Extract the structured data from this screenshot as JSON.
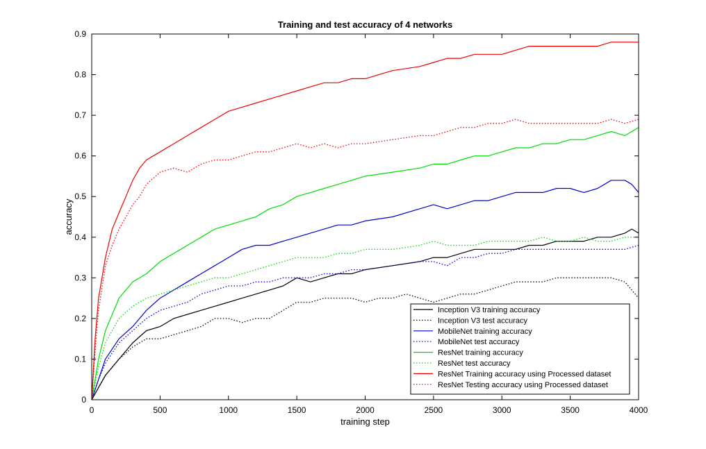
{
  "chart_data": {
    "type": "line",
    "title": "Training and test accuracy of 4 networks",
    "xlabel": "training step",
    "ylabel": "accuracy",
    "xlim": [
      0,
      4000
    ],
    "ylim": [
      0,
      0.9
    ],
    "xticks": [
      0,
      500,
      1000,
      1500,
      2000,
      2500,
      3000,
      3500,
      4000
    ],
    "yticks": [
      0,
      0.1,
      0.2,
      0.3,
      0.4,
      0.5,
      0.6,
      0.7,
      0.8,
      0.9
    ],
    "grid": false,
    "legend_position": "bottom-right",
    "series": [
      {
        "name": "Inception V3 training accuracy",
        "color": "#000000",
        "style": "solid",
        "x": [
          0,
          50,
          100,
          200,
          300,
          400,
          500,
          600,
          700,
          800,
          900,
          1000,
          1100,
          1200,
          1300,
          1400,
          1500,
          1600,
          1700,
          1800,
          1900,
          2000,
          2200,
          2400,
          2500,
          2600,
          2700,
          2800,
          2900,
          3000,
          3100,
          3200,
          3300,
          3400,
          3500,
          3600,
          3700,
          3800,
          3900,
          3950,
          4000
        ],
        "y": [
          0.0,
          0.03,
          0.06,
          0.1,
          0.14,
          0.17,
          0.18,
          0.2,
          0.21,
          0.22,
          0.23,
          0.24,
          0.25,
          0.26,
          0.27,
          0.28,
          0.3,
          0.29,
          0.3,
          0.31,
          0.31,
          0.32,
          0.33,
          0.34,
          0.35,
          0.35,
          0.36,
          0.37,
          0.37,
          0.37,
          0.37,
          0.38,
          0.38,
          0.39,
          0.39,
          0.39,
          0.4,
          0.4,
          0.41,
          0.42,
          0.41
        ]
      },
      {
        "name": "Inception V3 test accuracy",
        "color": "#000000",
        "style": "dotted",
        "x": [
          0,
          50,
          100,
          200,
          300,
          400,
          500,
          600,
          700,
          800,
          900,
          1000,
          1100,
          1200,
          1300,
          1400,
          1500,
          1600,
          1700,
          1800,
          1900,
          2000,
          2100,
          2200,
          2300,
          2400,
          2500,
          2600,
          2700,
          2800,
          2900,
          3000,
          3100,
          3200,
          3300,
          3400,
          3500,
          3600,
          3700,
          3800,
          3900,
          4000
        ],
        "y": [
          0.0,
          0.03,
          0.06,
          0.1,
          0.13,
          0.15,
          0.15,
          0.16,
          0.17,
          0.18,
          0.2,
          0.2,
          0.19,
          0.2,
          0.2,
          0.22,
          0.24,
          0.24,
          0.25,
          0.25,
          0.25,
          0.24,
          0.25,
          0.25,
          0.26,
          0.25,
          0.24,
          0.25,
          0.26,
          0.26,
          0.27,
          0.28,
          0.29,
          0.29,
          0.29,
          0.3,
          0.3,
          0.3,
          0.3,
          0.3,
          0.29,
          0.25
        ]
      },
      {
        "name": "MobileNet training accuracy",
        "color": "#0000cc",
        "style": "solid",
        "x": [
          0,
          50,
          100,
          200,
          300,
          400,
          500,
          600,
          700,
          800,
          900,
          1000,
          1100,
          1200,
          1300,
          1400,
          1500,
          1600,
          1700,
          1800,
          1900,
          2000,
          2200,
          2400,
          2500,
          2600,
          2700,
          2800,
          2900,
          3000,
          3100,
          3200,
          3300,
          3400,
          3500,
          3600,
          3700,
          3800,
          3900,
          3950,
          4000
        ],
        "y": [
          0.0,
          0.05,
          0.1,
          0.15,
          0.18,
          0.22,
          0.25,
          0.27,
          0.29,
          0.31,
          0.33,
          0.35,
          0.37,
          0.38,
          0.38,
          0.39,
          0.4,
          0.41,
          0.42,
          0.43,
          0.43,
          0.44,
          0.45,
          0.47,
          0.48,
          0.47,
          0.48,
          0.49,
          0.49,
          0.5,
          0.51,
          0.51,
          0.51,
          0.52,
          0.52,
          0.51,
          0.52,
          0.54,
          0.54,
          0.53,
          0.51
        ]
      },
      {
        "name": "MobileNet test accuracy",
        "color": "#0000cc",
        "style": "dotted",
        "x": [
          0,
          50,
          100,
          200,
          300,
          400,
          500,
          600,
          700,
          800,
          900,
          1000,
          1100,
          1200,
          1300,
          1400,
          1500,
          1600,
          1700,
          1800,
          1900,
          2000,
          2200,
          2400,
          2500,
          2600,
          2700,
          2800,
          2900,
          3000,
          3100,
          3200,
          3300,
          3400,
          3500,
          3600,
          3700,
          3800,
          3900,
          4000
        ],
        "y": [
          0.0,
          0.05,
          0.09,
          0.14,
          0.17,
          0.2,
          0.22,
          0.23,
          0.24,
          0.26,
          0.27,
          0.28,
          0.28,
          0.29,
          0.29,
          0.3,
          0.3,
          0.3,
          0.31,
          0.31,
          0.32,
          0.32,
          0.33,
          0.34,
          0.34,
          0.33,
          0.35,
          0.35,
          0.36,
          0.36,
          0.37,
          0.37,
          0.37,
          0.37,
          0.37,
          0.37,
          0.37,
          0.37,
          0.37,
          0.38
        ]
      },
      {
        "name": "ResNet training accuracy",
        "color": "#00dd00",
        "style": "solid",
        "x": [
          0,
          50,
          100,
          200,
          300,
          400,
          500,
          600,
          700,
          800,
          900,
          1000,
          1100,
          1200,
          1300,
          1400,
          1500,
          1600,
          1700,
          1800,
          1900,
          2000,
          2200,
          2400,
          2500,
          2600,
          2700,
          2800,
          2900,
          3000,
          3100,
          3200,
          3300,
          3400,
          3500,
          3600,
          3700,
          3800,
          3900,
          3950,
          4000
        ],
        "y": [
          0.0,
          0.1,
          0.17,
          0.25,
          0.29,
          0.31,
          0.34,
          0.36,
          0.38,
          0.4,
          0.42,
          0.43,
          0.44,
          0.45,
          0.47,
          0.48,
          0.5,
          0.51,
          0.52,
          0.53,
          0.54,
          0.55,
          0.56,
          0.57,
          0.58,
          0.58,
          0.59,
          0.6,
          0.6,
          0.61,
          0.62,
          0.62,
          0.63,
          0.63,
          0.64,
          0.64,
          0.65,
          0.66,
          0.65,
          0.66,
          0.67
        ]
      },
      {
        "name": "ResNet test accuracy",
        "color": "#00dd00",
        "style": "dotted",
        "x": [
          0,
          50,
          100,
          200,
          300,
          400,
          500,
          600,
          700,
          800,
          900,
          1000,
          1100,
          1200,
          1300,
          1400,
          1500,
          1600,
          1700,
          1800,
          1900,
          2000,
          2200,
          2400,
          2500,
          2600,
          2700,
          2800,
          2900,
          3000,
          3100,
          3200,
          3300,
          3400,
          3500,
          3600,
          3700,
          3800,
          3900,
          4000
        ],
        "y": [
          0.0,
          0.08,
          0.14,
          0.2,
          0.23,
          0.25,
          0.26,
          0.27,
          0.28,
          0.29,
          0.3,
          0.3,
          0.31,
          0.32,
          0.33,
          0.34,
          0.35,
          0.35,
          0.35,
          0.36,
          0.36,
          0.37,
          0.37,
          0.38,
          0.39,
          0.38,
          0.38,
          0.38,
          0.39,
          0.39,
          0.39,
          0.39,
          0.4,
          0.39,
          0.39,
          0.4,
          0.39,
          0.39,
          0.4,
          0.4
        ]
      },
      {
        "name": "ResNet Training accuracy using Processed dataset",
        "color": "#ee0000",
        "style": "solid",
        "x": [
          0,
          25,
          50,
          100,
          150,
          200,
          250,
          300,
          350,
          400,
          500,
          600,
          700,
          800,
          900,
          1000,
          1100,
          1200,
          1300,
          1400,
          1500,
          1600,
          1700,
          1800,
          1900,
          2000,
          2200,
          2400,
          2500,
          2600,
          2700,
          2800,
          2900,
          3000,
          3100,
          3200,
          3300,
          3400,
          3500,
          3600,
          3700,
          3800,
          3900,
          4000
        ],
        "y": [
          0.0,
          0.15,
          0.25,
          0.35,
          0.42,
          0.46,
          0.5,
          0.54,
          0.57,
          0.59,
          0.61,
          0.63,
          0.65,
          0.67,
          0.69,
          0.71,
          0.72,
          0.73,
          0.74,
          0.75,
          0.76,
          0.77,
          0.78,
          0.78,
          0.79,
          0.79,
          0.81,
          0.82,
          0.83,
          0.84,
          0.84,
          0.85,
          0.85,
          0.85,
          0.86,
          0.87,
          0.87,
          0.87,
          0.87,
          0.87,
          0.87,
          0.88,
          0.88,
          0.88
        ]
      },
      {
        "name": "ResNet Testing accuracy using Processed dataset",
        "color": "#ee0000",
        "style": "dotted",
        "x": [
          0,
          25,
          50,
          100,
          150,
          200,
          250,
          300,
          350,
          400,
          500,
          600,
          700,
          800,
          900,
          1000,
          1100,
          1200,
          1300,
          1400,
          1500,
          1600,
          1700,
          1800,
          1900,
          2000,
          2200,
          2400,
          2500,
          2600,
          2700,
          2800,
          2900,
          3000,
          3100,
          3200,
          3300,
          3400,
          3500,
          3600,
          3700,
          3800,
          3900,
          4000
        ],
        "y": [
          0.0,
          0.12,
          0.22,
          0.33,
          0.38,
          0.42,
          0.45,
          0.48,
          0.5,
          0.53,
          0.56,
          0.57,
          0.56,
          0.58,
          0.59,
          0.59,
          0.6,
          0.61,
          0.61,
          0.62,
          0.63,
          0.62,
          0.63,
          0.62,
          0.63,
          0.63,
          0.64,
          0.65,
          0.65,
          0.66,
          0.67,
          0.67,
          0.68,
          0.68,
          0.69,
          0.68,
          0.68,
          0.68,
          0.68,
          0.68,
          0.68,
          0.69,
          0.68,
          0.69
        ]
      }
    ]
  }
}
